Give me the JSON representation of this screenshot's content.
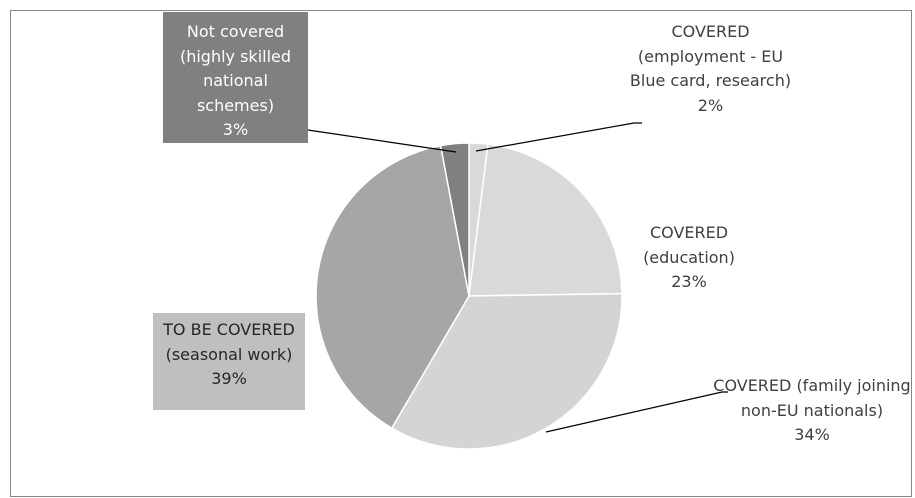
{
  "chart_data": {
    "type": "pie",
    "categories": [
      "COVERED (employment - EU Blue card, research)",
      "COVERED (education)",
      "COVERED (family joining non-EU nationals)",
      "TO BE COVERED (seasonal work)",
      "Not covered (highly skilled national schemes)"
    ],
    "values": [
      2,
      23,
      34,
      39,
      3
    ],
    "value_labels": [
      "2%",
      "23%",
      "34%",
      "39%",
      "3%"
    ],
    "colors": [
      "#d9d9d9",
      "#d9d9d9",
      "#d4d4d4",
      "#a6a6a6",
      "#808080"
    ]
  }
}
